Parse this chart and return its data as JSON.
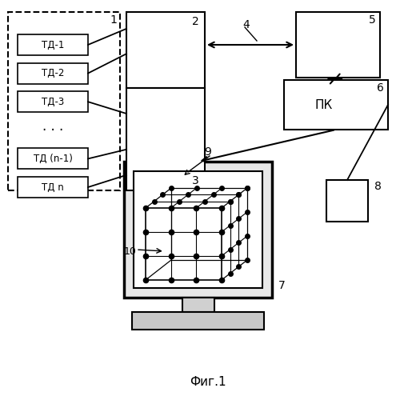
{
  "title": "Фиг.1",
  "background_color": "#ffffff",
  "line_color": "#000000",
  "sensors": [
    "ТД-1",
    "ТД-2",
    "ТД-3",
    "· · ·",
    "ТД (n-1)",
    "ТД n"
  ],
  "pk_label": "ПК",
  "label1": "1",
  "label2": "2",
  "label3": "3",
  "label4": "4",
  "label5": "5",
  "label6": "6",
  "label7": "7",
  "label8": "8",
  "label9": "9",
  "label10": "10"
}
